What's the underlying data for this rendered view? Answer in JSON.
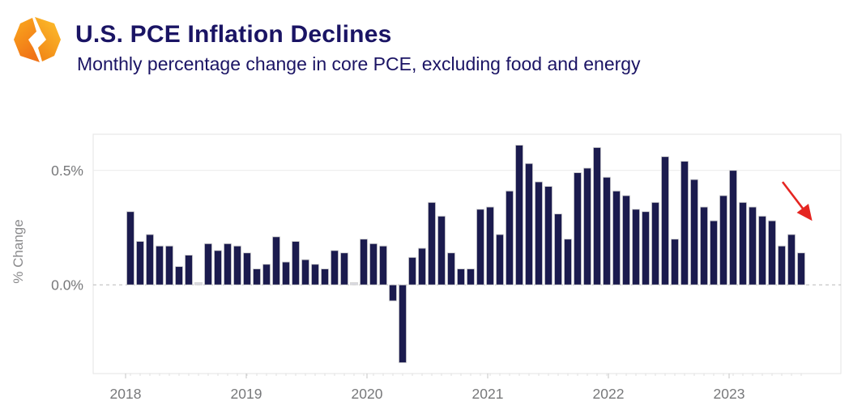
{
  "header": {
    "title": "U.S. PCE Inflation Declines",
    "subtitle": "Monthly percentage change in core PCE, excluding food and energy",
    "logo": {
      "name": "diamond-brackets-logo",
      "color_top": "#fbab1e",
      "color_bottom": "#f07317",
      "color_right_top": "#fdc22e",
      "color_right_bottom": "#f28a17"
    }
  },
  "chart_data": {
    "type": "bar",
    "title": "",
    "xlabel": "",
    "ylabel": "% Change",
    "unit": "percent (monthly change)",
    "ylim": [
      -0.45,
      0.66
    ],
    "grid": "horizontal line at 0.5% only, dashed zero line",
    "legend_position": "none",
    "y_tick_labels": [
      "0.5%",
      "0.0%"
    ],
    "y_tick_values": [
      0.5,
      0.0
    ],
    "x_tick_labels": [
      "2018",
      "2019",
      "2020",
      "2021",
      "2022",
      "2023"
    ],
    "bar_color": "#1b1b4e",
    "bar_outline": "#d6d6d6",
    "near_zero_bar_color": "#d8d8df",
    "categories": [
      "Jan 2018",
      "Feb 2018",
      "Mar 2018",
      "Apr 2018",
      "May 2018",
      "Jun 2018",
      "Jul 2018",
      "Aug 2018",
      "Sep 2018",
      "Oct 2018",
      "Nov 2018",
      "Dec 2018",
      "Jan 2019",
      "Feb 2019",
      "Mar 2019",
      "Apr 2019",
      "May 2019",
      "Jun 2019",
      "Jul 2019",
      "Aug 2019",
      "Sep 2019",
      "Oct 2019",
      "Nov 2019",
      "Dec 2019",
      "Jan 2020",
      "Feb 2020",
      "Mar 2020",
      "Apr 2020",
      "May 2020",
      "Jun 2020",
      "Jul 2020",
      "Aug 2020",
      "Sep 2020",
      "Oct 2020",
      "Nov 2020",
      "Dec 2020",
      "Jan 2021",
      "Feb 2021",
      "Mar 2021",
      "Apr 2021",
      "May 2021",
      "Jun 2021",
      "Jul 2021",
      "Aug 2021",
      "Sep 2021",
      "Oct 2021",
      "Nov 2021",
      "Dec 2021",
      "Jan 2022",
      "Feb 2022",
      "Mar 2022",
      "Apr 2022",
      "May 2022",
      "Jun 2022",
      "Jul 2022",
      "Aug 2022",
      "Sep 2022",
      "Oct 2022",
      "Nov 2022",
      "Dec 2022",
      "Jan 2023",
      "Feb 2023",
      "Mar 2023",
      "Apr 2023",
      "May 2023",
      "Jun 2023",
      "Jul 2023",
      "Aug 2023",
      "Sep 2023",
      "Oct 2023"
    ],
    "values": [
      0.32,
      0.19,
      0.22,
      0.17,
      0.17,
      0.08,
      0.13,
      0.01,
      0.18,
      0.15,
      0.18,
      0.17,
      0.14,
      0.07,
      0.09,
      0.21,
      0.1,
      0.19,
      0.11,
      0.09,
      0.07,
      0.15,
      0.14,
      0.01,
      0.2,
      0.18,
      0.17,
      -0.07,
      -0.34,
      0.12,
      0.16,
      0.36,
      0.3,
      0.14,
      0.07,
      0.07,
      0.33,
      0.34,
      0.22,
      0.41,
      0.61,
      0.53,
      0.45,
      0.43,
      0.31,
      0.2,
      0.49,
      0.51,
      0.6,
      0.47,
      0.41,
      0.39,
      0.33,
      0.32,
      0.36,
      0.56,
      0.2,
      0.54,
      0.46,
      0.34,
      0.28,
      0.39,
      0.5,
      0.36,
      0.34,
      0.3,
      0.28,
      0.17,
      0.22,
      0.14
    ],
    "annotation": {
      "type": "decline-arrow",
      "description": "red arrow pointing down-right over final declining bars",
      "color": "#e52521"
    }
  }
}
